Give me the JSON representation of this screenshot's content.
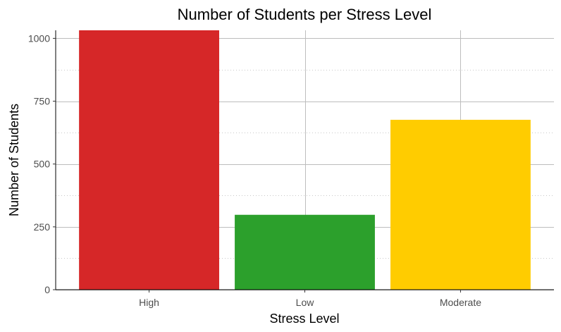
{
  "chart_data": {
    "type": "bar",
    "title": "Number of Students per Stress Level",
    "xlabel": "Stress Level",
    "ylabel": "Number of Students",
    "categories": [
      "High",
      "Low",
      "Moderate"
    ],
    "values": [
      1032,
      298,
      676
    ],
    "colors": [
      "#d62728",
      "#2ca02c",
      "#ffcc00"
    ],
    "ylim": [
      0,
      1032
    ],
    "yticks": [
      0,
      250,
      500,
      750,
      1000
    ],
    "yminor": [
      125,
      375,
      625,
      875
    ],
    "grid": true,
    "legend": "none"
  }
}
